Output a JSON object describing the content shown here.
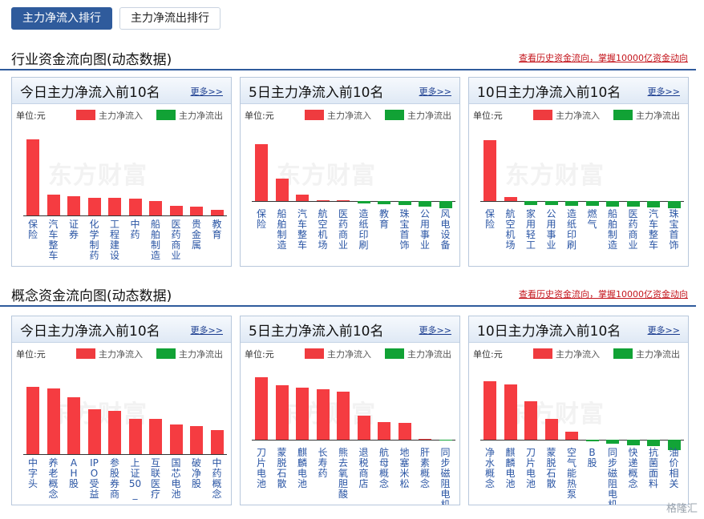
{
  "tabs": [
    {
      "label": "主力净流入排行",
      "active": true
    },
    {
      "label": "主力净流出排行",
      "active": false
    }
  ],
  "sections": [
    {
      "title": "行业资金流向图(动态数据)",
      "link": "查看历史资金流向，掌握10000亿资金动向",
      "panels": [
        {
          "title": "今日主力净流入前10名",
          "more": "更多>>",
          "unit": "单位:元",
          "legend_in": "主力净流入",
          "legend_out": "主力净流出",
          "chart_data": {
            "type": "bar",
            "categories": [
              "保险",
              "汽车整车",
              "证券",
              "化学制药",
              "工程建设",
              "中药",
              "船舶制造",
              "医药商业",
              "贵金属",
              "教育"
            ],
            "values": [
              97,
              27,
              25,
              22,
              22,
              21,
              18,
              12,
              11,
              7
            ]
          }
        },
        {
          "title": "5日主力净流入前10名",
          "more": "更多>>",
          "unit": "单位:元",
          "legend_in": "主力净流入",
          "legend_out": "主力净流出",
          "chart_data": {
            "type": "bar",
            "categories": [
              "保险",
              "船舶制造",
              "汽车整车",
              "航空机场",
              "医药商业",
              "造纸印刷",
              "教育",
              "珠宝首饰",
              "公用事业",
              "风电设备"
            ],
            "values": [
              72,
              29,
              8,
              1,
              0.5,
              -3,
              -4,
              -5,
              -7,
              -9
            ]
          }
        },
        {
          "title": "10日主力净流入前10名",
          "more": "更多>>",
          "unit": "单位:元",
          "legend_in": "主力净流入",
          "legend_out": "主力净流出",
          "chart_data": {
            "type": "bar",
            "categories": [
              "保险",
              "航空机场",
              "家用轻工",
              "公用事业",
              "造纸印刷",
              "燃气",
              "船舶制造",
              "医药商业",
              "汽车整车",
              "珠宝首饰"
            ],
            "values": [
              78,
              5,
              -5,
              -5,
              -6,
              -6,
              -7,
              -7,
              -8,
              -9
            ]
          }
        }
      ]
    },
    {
      "title": "概念资金流向图(动态数据)",
      "link": "查看历史资金流向，掌握10000亿资金动向",
      "panels": [
        {
          "title": "今日主力净流入前10名",
          "more": "更多>>",
          "unit": "单位:元",
          "legend_in": "主力净流入",
          "legend_out": "主力净流出",
          "chart_data": {
            "type": "bar",
            "categories": [
              "中字头",
              "养老概念",
              "AH股",
              "IPO受益",
              "参股券商",
              "上证50_",
              "互联医疗",
              "国芯电池",
              "破净股",
              "中药概念"
            ],
            "values": [
              86,
              84,
              72,
              57,
              55,
              45,
              45,
              38,
              36,
              31
            ]
          }
        },
        {
          "title": "5日主力净流入前10名",
          "more": "更多>>",
          "unit": "单位:元",
          "legend_in": "主力净流入",
          "legend_out": "主力净流出",
          "chart_data": {
            "type": "bar",
            "categories": [
              "刀片电池",
              "蒙脱石散",
              "麒麟电池",
              "长寿药",
              "熊去氧胆酸",
              "退税商店",
              "航母概念",
              "地塞米松",
              "肝素概念",
              "同步磁阻电机"
            ],
            "values": [
              80,
              69,
              66,
              64,
              61,
              31,
              22,
              21,
              1,
              -1
            ]
          }
        },
        {
          "title": "10日主力净流入前10名",
          "more": "更多>>",
          "unit": "单位:元",
          "legend_in": "主力净流入",
          "legend_out": "主力净流出",
          "chart_data": {
            "type": "bar",
            "categories": [
              "净水概念",
              "麒麟电池",
              "刀片电池",
              "蒙脱石散",
              "空气能热泵",
              "B股",
              "同步磁阻电机",
              "快递概念",
              "抗菌面料",
              "油价相关"
            ],
            "values": [
              75,
              70,
              49,
              27,
              10,
              -2,
              -5,
              -7,
              -8,
              -13
            ]
          }
        }
      ]
    }
  ],
  "watermark": "东方财富",
  "corner_logo": "格隆汇",
  "colors": {
    "inflow": "#f53c41",
    "outflow": "#12a437",
    "accent": "#2f5b9c",
    "link": "#c4151c"
  }
}
